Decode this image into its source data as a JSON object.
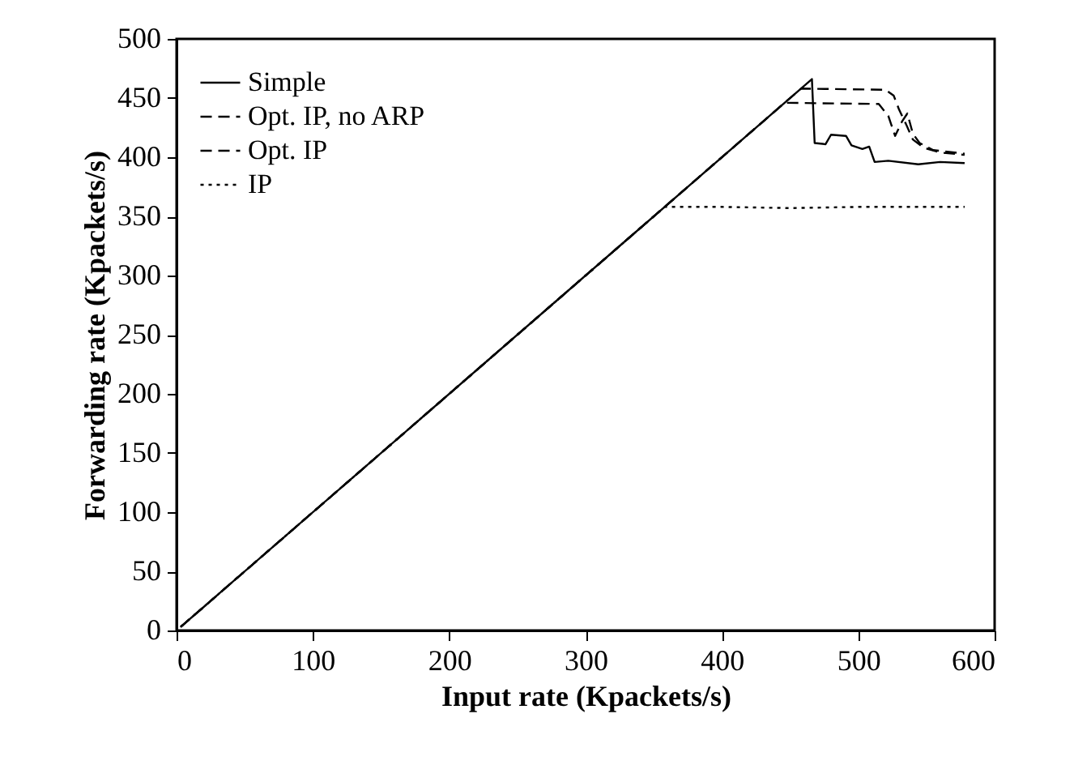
{
  "chart_data": {
    "type": "line",
    "xlabel": "Input rate (Kpackets/s)",
    "ylabel": "Forwarding rate (Kpackets/s)",
    "xlim": [
      0,
      600
    ],
    "xticks": [
      0,
      100,
      200,
      300,
      400,
      500,
      600
    ],
    "ylim": [
      0,
      500
    ],
    "yticks": [
      0,
      50,
      100,
      150,
      200,
      250,
      300,
      350,
      400,
      450,
      500
    ],
    "grid": false,
    "legend": "top left",
    "marker": "none",
    "series": [
      {
        "name": "Simple",
        "color": "#000000",
        "line_style": "solid",
        "x": [
          3,
          466,
          468,
          476,
          480,
          491,
          495,
          503,
          508,
          512,
          522,
          544,
          560,
          578
        ],
        "values": [
          3,
          466,
          412,
          411,
          419,
          418,
          410,
          407,
          409,
          396,
          397,
          394,
          396,
          395
        ]
      },
      {
        "name": "Opt. IP, no ARP",
        "color": "#000000",
        "line_style": "dashed",
        "x": [
          3,
          458,
          520,
          526,
          530,
          535,
          540,
          548,
          560,
          578
        ],
        "values": [
          3,
          458,
          457,
          452,
          440,
          428,
          415,
          408,
          404,
          402
        ]
      },
      {
        "name": "Opt. IP",
        "color": "#000000",
        "line_style": "dashed",
        "x": [
          3,
          446,
          515,
          522,
          527,
          532,
          536,
          540,
          545,
          555,
          578
        ],
        "values": [
          3,
          446,
          445,
          435,
          418,
          430,
          437,
          420,
          412,
          406,
          403
        ]
      },
      {
        "name": "IP",
        "color": "#000000",
        "line_style": "dotted",
        "x": [
          3,
          358,
          400,
          450,
          500,
          578
        ],
        "values": [
          3,
          358,
          358,
          357,
          358,
          358
        ]
      }
    ]
  }
}
